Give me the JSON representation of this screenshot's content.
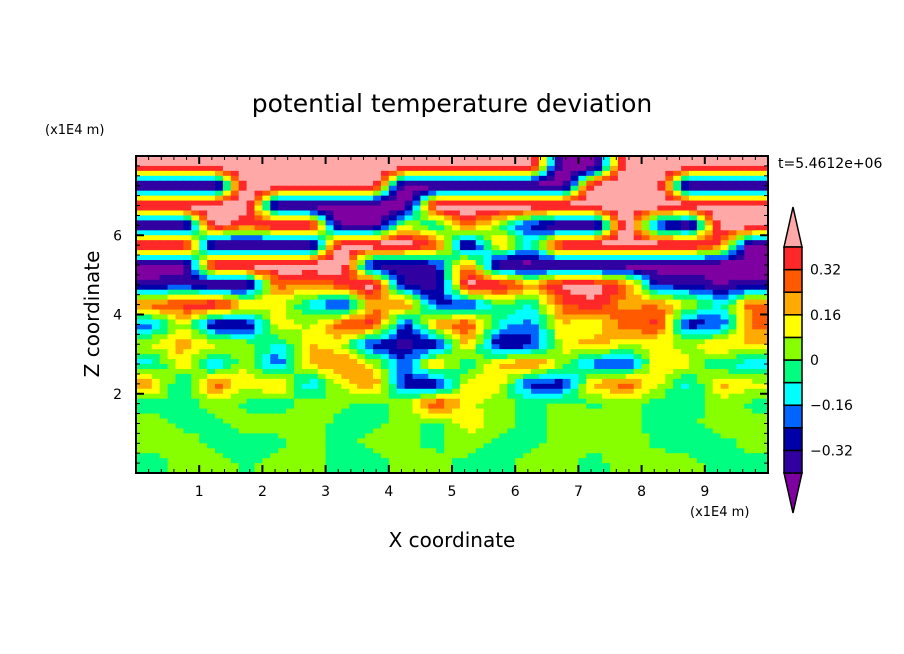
{
  "chart_data": {
    "type": "heatmap",
    "title": "potential temperature deviation",
    "xlabel": "X coordinate",
    "ylabel": "Z coordinate",
    "x_unit": "(x1E4 m)",
    "y_unit": "(x1E4 m)",
    "time_label": "t=5.4612e+06",
    "xlim": [
      0,
      10
    ],
    "ylim": [
      0,
      8
    ],
    "x_ticks": [
      "1",
      "2",
      "3",
      "4",
      "5",
      "6",
      "7",
      "8",
      "9"
    ],
    "y_ticks": [
      "2",
      "4",
      "6"
    ],
    "x_cell_centers": [
      0.25,
      0.75,
      1.25,
      1.75,
      2.25,
      2.75,
      3.25,
      3.75,
      4.25,
      4.75,
      5.25,
      5.75,
      6.25,
      6.75,
      7.25,
      7.75,
      8.25,
      8.75,
      9.25,
      9.75
    ],
    "z_cell_centers": [
      7.75,
      7.25,
      6.75,
      6.25,
      5.75,
      5.25,
      4.75,
      4.25,
      3.75,
      3.25,
      2.75,
      2.25,
      1.75,
      1.25,
      0.75,
      0.25
    ],
    "values": [
      [
        0.5,
        0.5,
        0.5,
        0.5,
        0.5,
        0.5,
        0.5,
        0.5,
        0.5,
        0.5,
        0.5,
        0.5,
        0.5,
        -0.5,
        -0.5,
        0.5,
        0.5,
        0.5,
        0.5,
        0.5
      ],
      [
        -0.5,
        -0.5,
        -0.5,
        0.5,
        0.5,
        0.5,
        0.5,
        0.5,
        -0.5,
        -0.5,
        -0.5,
        -0.5,
        -0.5,
        -0.5,
        0.5,
        0.5,
        0.5,
        -0.5,
        -0.5,
        -0.5
      ],
      [
        0.5,
        0.5,
        0.5,
        0.5,
        -0.5,
        -0.5,
        -0.5,
        -0.5,
        -0.5,
        0.5,
        0.5,
        0.5,
        0.5,
        0.5,
        0.5,
        0.5,
        0.5,
        0.5,
        0.5,
        0.5
      ],
      [
        -0.5,
        -0.5,
        0.5,
        0.3,
        0.5,
        0.5,
        -0.5,
        -0.5,
        0.1,
        -0.1,
        0.3,
        0.0,
        -0.3,
        -0.5,
        -0.5,
        0.5,
        -0.3,
        -0.5,
        0.5,
        0.5
      ],
      [
        0.5,
        0.5,
        -0.5,
        -0.5,
        -0.5,
        -0.5,
        0.5,
        0.5,
        0.5,
        0.35,
        -0.45,
        0.2,
        -0.1,
        0.5,
        0.5,
        0.5,
        0.5,
        0.5,
        0.3,
        -0.5
      ],
      [
        -0.5,
        -0.5,
        0.5,
        0.5,
        0.5,
        0.5,
        0.5,
        -0.4,
        -0.4,
        -0.3,
        0.3,
        -0.45,
        -0.45,
        -0.45,
        -0.5,
        -0.5,
        -0.5,
        -0.5,
        -0.5,
        -0.5
      ],
      [
        -0.35,
        -0.3,
        -0.45,
        -0.45,
        0.3,
        0.2,
        0.35,
        0.45,
        -0.35,
        -0.4,
        0.45,
        0.45,
        0.2,
        0.45,
        0.45,
        0.3,
        -0.3,
        -0.3,
        -0.4,
        -0.35
      ],
      [
        0.3,
        0.35,
        0.45,
        0.2,
        0.1,
        -0.1,
        -0.3,
        0.2,
        0.3,
        -0.25,
        -0.3,
        0.0,
        -0.1,
        0.3,
        0.38,
        0.2,
        0.25,
        0.1,
        -0.1,
        0.3
      ],
      [
        -0.2,
        0.1,
        -0.38,
        -0.35,
        0.15,
        0.05,
        0.3,
        0.4,
        -0.3,
        0.25,
        0.35,
        -0.1,
        -0.2,
        0.15,
        0.1,
        0.3,
        0.35,
        -0.3,
        -0.25,
        0.28
      ],
      [
        0.1,
        0.2,
        0.12,
        0.05,
        -0.12,
        0.18,
        0.1,
        -0.3,
        -0.38,
        -0.3,
        0.2,
        -0.35,
        -0.3,
        0.12,
        0.2,
        0.1,
        0.1,
        0.05,
        0.2,
        0.15
      ],
      [
        -0.12,
        0.15,
        -0.2,
        0.1,
        -0.25,
        0.18,
        0.25,
        0.1,
        -0.2,
        0.2,
        -0.1,
        0.18,
        0.3,
        0.05,
        -0.22,
        -0.3,
        0.15,
        0.1,
        -0.1,
        -0.12
      ],
      [
        0.2,
        -0.12,
        0.3,
        0.1,
        0.2,
        -0.15,
        0.1,
        0.25,
        -0.3,
        -0.35,
        0.15,
        0.12,
        -0.28,
        -0.3,
        0.2,
        0.3,
        0.1,
        -0.12,
        0.2,
        0.1
      ],
      [
        -0.05,
        -0.03,
        0.03,
        -0.02,
        -0.04,
        0.04,
        0.02,
        -0.03,
        0.05,
        0.35,
        0.1,
        0.03,
        -0.03,
        0.02,
        -0.02,
        0.04,
        -0.03,
        -0.04,
        0.03,
        -0.02
      ],
      [
        0.04,
        -0.03,
        -0.02,
        0.03,
        0.05,
        0.04,
        -0.03,
        -0.02,
        0.03,
        -0.03,
        0.12,
        0.05,
        -0.04,
        0.03,
        0.05,
        0.03,
        -0.03,
        -0.02,
        0.04,
        0.03
      ],
      [
        0.03,
        0.05,
        -0.03,
        -0.04,
        -0.03,
        0.04,
        -0.04,
        0.03,
        0.02,
        -0.03,
        0.05,
        -0.04,
        -0.03,
        0.04,
        0.03,
        0.05,
        -0.02,
        -0.04,
        -0.03,
        0.03
      ],
      [
        -0.03,
        0.03,
        0.04,
        -0.02,
        0.04,
        0.03,
        -0.03,
        -0.04,
        0.05,
        0.04,
        -0.03,
        -0.04,
        0.04,
        0.03,
        -0.03,
        0.04,
        0.05,
        0.03,
        -0.04,
        -0.03
      ]
    ],
    "colorbar": {
      "levels": [
        -0.4,
        -0.32,
        -0.24,
        -0.16,
        -0.08,
        0,
        0.08,
        0.16,
        0.24,
        0.32,
        0.4
      ],
      "labels": [
        "0.32",
        "0.16",
        "0",
        "−0.16",
        "−0.32"
      ],
      "label_values": [
        0.32,
        0.16,
        0,
        -0.16,
        -0.32
      ],
      "colors": [
        "#7F00A0",
        "#3000A0",
        "#0000AA",
        "#0064FF",
        "#00FFFF",
        "#00FF80",
        "#88FF00",
        "#FFFF00",
        "#FFAA00",
        "#FF5A00",
        "#FF2828",
        "#FFA8A8"
      ],
      "extend": "both"
    }
  }
}
